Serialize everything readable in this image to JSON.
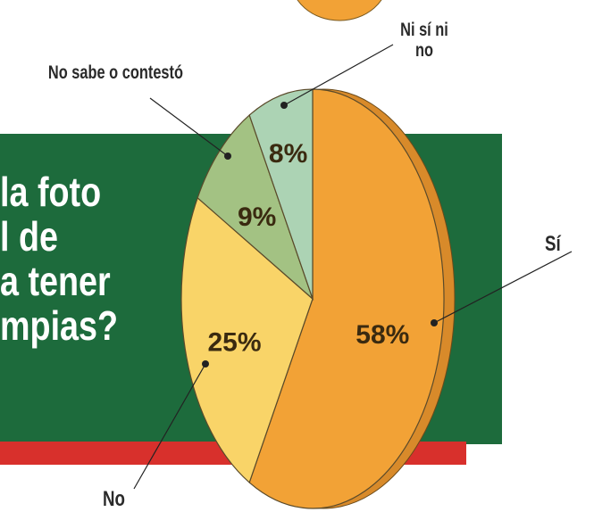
{
  "chart_data": {
    "type": "pie",
    "title": [
      "la foto",
      "l de",
      "a tener",
      "mpias?"
    ],
    "categories": [
      "Sí",
      "No",
      "No sabe o contestó",
      "Ni sí ni no"
    ],
    "values": [
      58,
      25,
      9,
      8
    ],
    "value_labels": [
      "58%",
      "25%",
      "9%",
      "8%"
    ],
    "colors": [
      "#f2a236",
      "#f9d468",
      "#a3c283",
      "#acd3b4"
    ],
    "start_angle": 0,
    "direction": "clockwise"
  }
}
